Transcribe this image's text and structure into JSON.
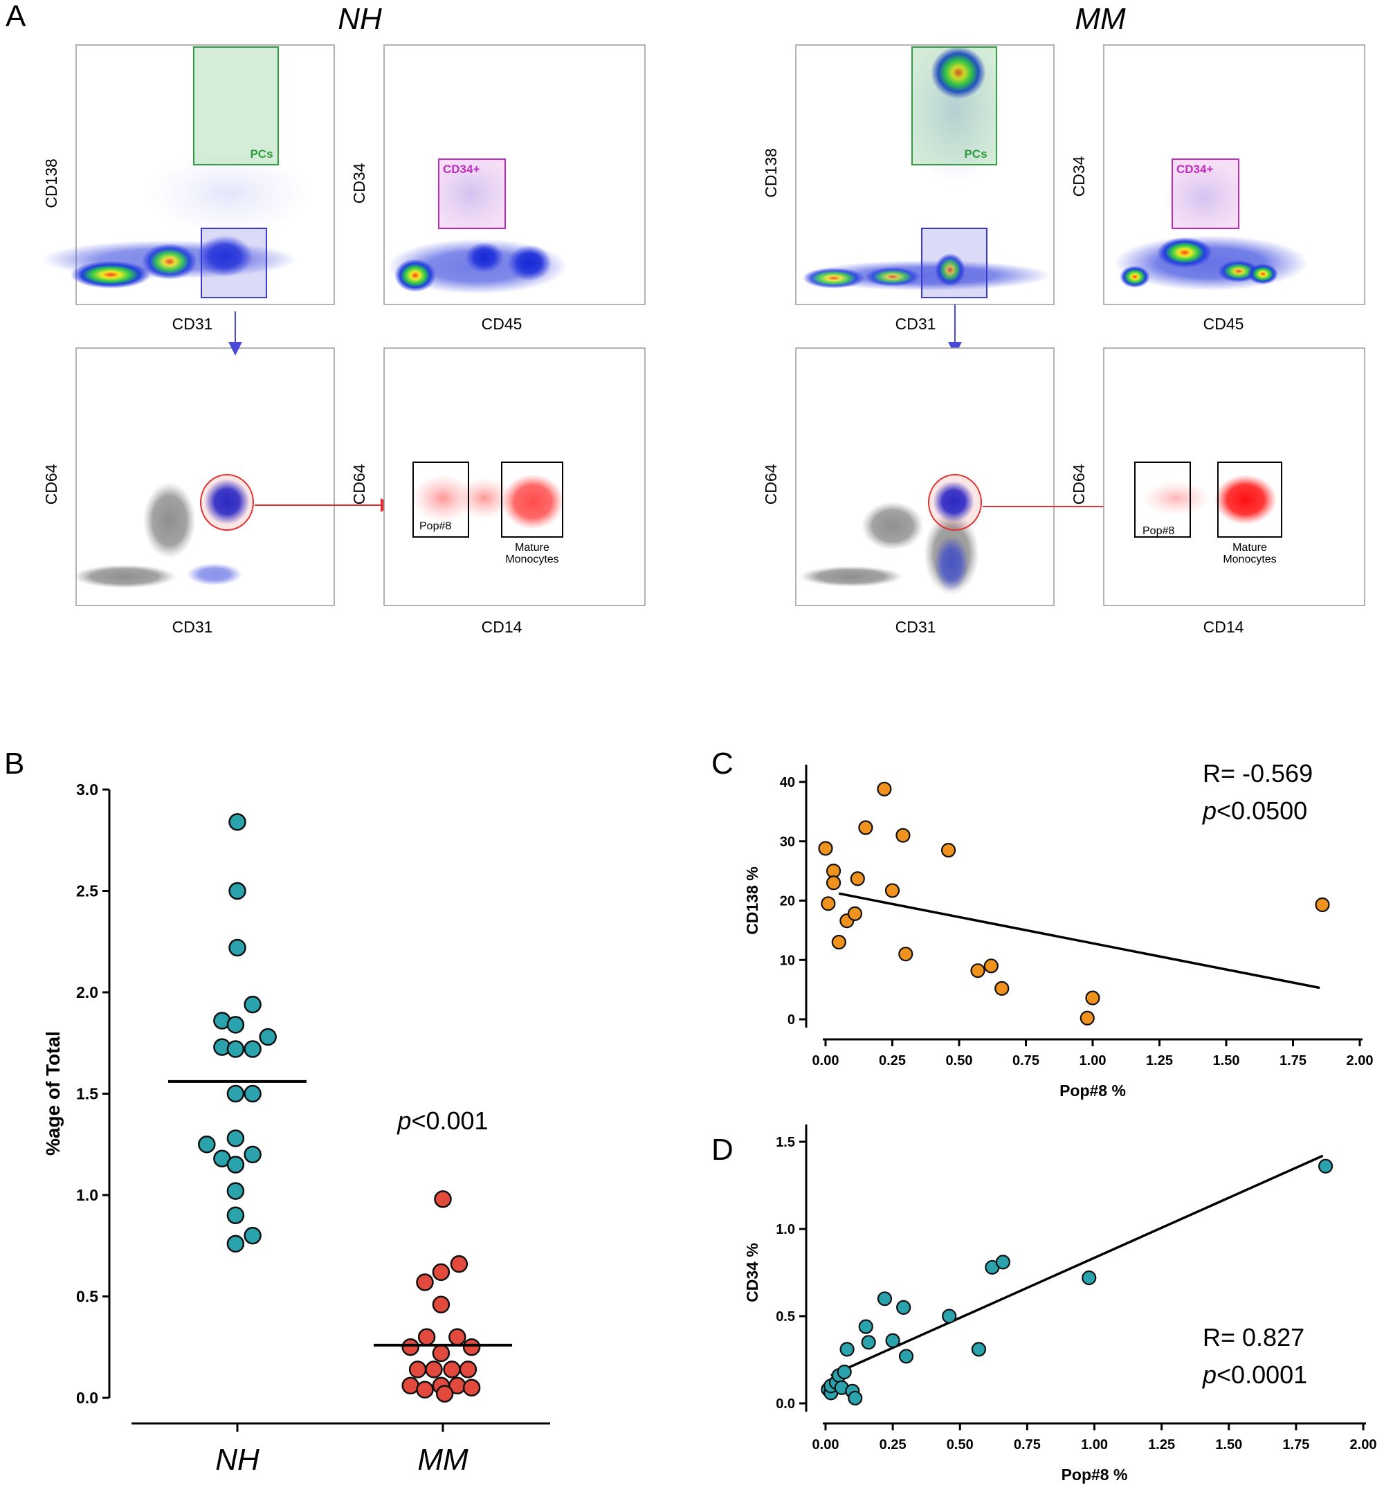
{
  "panel_letters": {
    "A": "A",
    "B": "B",
    "C": "C",
    "D": "D"
  },
  "panelA": {
    "groups": [
      {
        "title": "NH",
        "plots": [
          {
            "id": "nh_tl",
            "xlabel": "CD31",
            "ylabel": "CD138",
            "gates": [
              {
                "label": "PCs",
                "color": "#2e9e3e"
              },
              {
                "label": "",
                "color": "#3a3ad6"
              }
            ]
          },
          {
            "id": "nh_tr",
            "xlabel": "CD45",
            "ylabel": "CD34",
            "gates": [
              {
                "label": "CD34+",
                "color": "#c02cc0"
              }
            ]
          },
          {
            "id": "nh_bl",
            "xlabel": "CD31",
            "ylabel": "CD64",
            "gates": []
          },
          {
            "id": "nh_br",
            "xlabel": "CD14",
            "ylabel": "CD64",
            "gates": [
              {
                "label": "Pop#8",
                "color": "#000000"
              },
              {
                "label": "Mature",
                "label2": "Monocytes",
                "color": "#000000"
              }
            ]
          }
        ]
      },
      {
        "title": "MM",
        "plots": [
          {
            "id": "mm_tl",
            "xlabel": "CD31",
            "ylabel": "CD138",
            "gates": [
              {
                "label": "PCs",
                "color": "#2e9e3e"
              },
              {
                "label": "",
                "color": "#3a3ad6"
              }
            ]
          },
          {
            "id": "mm_tr",
            "xlabel": "CD45",
            "ylabel": "CD34",
            "gates": [
              {
                "label": "CD34+",
                "color": "#c02cc0"
              }
            ]
          },
          {
            "id": "mm_bl",
            "xlabel": "CD31",
            "ylabel": "CD64",
            "gates": []
          },
          {
            "id": "mm_br",
            "xlabel": "CD14",
            "ylabel": "CD64",
            "gates": [
              {
                "label": "Pop#8",
                "color": "#000000"
              },
              {
                "label": "Mature",
                "label2": "Monocytes",
                "color": "#000000"
              }
            ]
          }
        ]
      }
    ]
  },
  "chart_data": [
    {
      "id": "B",
      "type": "scatter",
      "title": "",
      "ylabel": "%age of Total",
      "xlabel": "",
      "categories": [
        "NH",
        "MM"
      ],
      "ylim": [
        0,
        3.0
      ],
      "yticks": [
        "0.0",
        "0.5",
        "1.0",
        "1.5",
        "2.0",
        "2.5",
        "3.0"
      ],
      "annotation": {
        "p": "p",
        "rest": "<0.001"
      },
      "series": [
        {
          "name": "NH",
          "color": "#2ba3ad",
          "median": 1.56,
          "points": [
            [
              0,
              2.84
            ],
            [
              0,
              2.5
            ],
            [
              0,
              2.22
            ],
            [
              -0.17,
              1.86
            ],
            [
              -0.02,
              1.84
            ],
            [
              0.17,
              1.94
            ],
            [
              -0.17,
              1.73
            ],
            [
              -0.02,
              1.72
            ],
            [
              0.17,
              1.72
            ],
            [
              0.34,
              1.78
            ],
            [
              -0.02,
              1.5
            ],
            [
              0.17,
              1.5
            ],
            [
              -0.34,
              1.25
            ],
            [
              -0.17,
              1.18
            ],
            [
              -0.02,
              1.28
            ],
            [
              0.17,
              1.2
            ],
            [
              -0.02,
              1.15
            ],
            [
              -0.02,
              1.02
            ],
            [
              -0.02,
              0.9
            ],
            [
              -0.02,
              0.76
            ],
            [
              0.17,
              0.8
            ]
          ]
        },
        {
          "name": "MM",
          "color": "#e24a3d",
          "median": 0.26,
          "points": [
            [
              0,
              0.98
            ],
            [
              0.18,
              0.66
            ],
            [
              -0.02,
              0.62
            ],
            [
              -0.2,
              0.57
            ],
            [
              -0.02,
              0.46
            ],
            [
              -0.36,
              0.25
            ],
            [
              -0.18,
              0.3
            ],
            [
              0.16,
              0.3
            ],
            [
              0.32,
              0.25
            ],
            [
              -0.02,
              0.22
            ],
            [
              -0.28,
              0.14
            ],
            [
              -0.1,
              0.14
            ],
            [
              0.1,
              0.14
            ],
            [
              0.28,
              0.14
            ],
            [
              -0.36,
              0.06
            ],
            [
              -0.2,
              0.04
            ],
            [
              -0.02,
              0.06
            ],
            [
              0.16,
              0.06
            ],
            [
              0.32,
              0.05
            ],
            [
              0.02,
              0.02
            ]
          ]
        }
      ]
    },
    {
      "id": "C",
      "type": "scatter",
      "title": "",
      "xlabel": "Pop#8 %",
      "ylabel": "CD138 %",
      "xlim": [
        0,
        2.0
      ],
      "ylim": [
        0,
        40
      ],
      "xticks": [
        "0.00",
        "0.25",
        "0.50",
        "0.75",
        "1.00",
        "1.25",
        "1.50",
        "1.75",
        "2.00"
      ],
      "yticks": [
        "0",
        "10",
        "20",
        "30",
        "40"
      ],
      "color": "#f0921e",
      "annotation": {
        "r": "R= -0.569",
        "p": "p",
        "rest": "<0.0500"
      },
      "fit": {
        "x": [
          0.05,
          1.85
        ],
        "y": [
          21.2,
          5.3
        ]
      },
      "points": [
        [
          0.0,
          28.8
        ],
        [
          0.01,
          19.5
        ],
        [
          0.03,
          25.0
        ],
        [
          0.03,
          23.0
        ],
        [
          0.05,
          13.0
        ],
        [
          0.08,
          16.6
        ],
        [
          0.11,
          17.8
        ],
        [
          0.12,
          23.7
        ],
        [
          0.15,
          32.3
        ],
        [
          0.22,
          38.8
        ],
        [
          0.25,
          21.7
        ],
        [
          0.29,
          31.0
        ],
        [
          0.3,
          11.0
        ],
        [
          0.46,
          28.5
        ],
        [
          0.57,
          8.2
        ],
        [
          0.62,
          9.0
        ],
        [
          0.66,
          5.2
        ],
        [
          0.98,
          0.2
        ],
        [
          1.0,
          3.6
        ],
        [
          1.86,
          19.3
        ]
      ]
    },
    {
      "id": "D",
      "type": "scatter",
      "title": "",
      "xlabel": "Pop#8 %",
      "ylabel": "CD34 %",
      "xlim": [
        0,
        2.0
      ],
      "ylim": [
        0,
        1.5
      ],
      "xticks": [
        "0.00",
        "0.25",
        "0.50",
        "0.75",
        "1.00",
        "1.25",
        "1.50",
        "1.75",
        "2.00"
      ],
      "yticks": [
        "0.0",
        "0.5",
        "1.0",
        "1.5"
      ],
      "color": "#2ba3ad",
      "annotation": {
        "r": "R= 0.827",
        "p": "p",
        "rest": "<0.0001"
      },
      "fit": {
        "x": [
          0.02,
          1.85
        ],
        "y": [
          0.16,
          1.42
        ]
      },
      "points": [
        [
          0.01,
          0.08
        ],
        [
          0.02,
          0.06
        ],
        [
          0.02,
          0.1
        ],
        [
          0.04,
          0.12
        ],
        [
          0.05,
          0.16
        ],
        [
          0.06,
          0.09
        ],
        [
          0.07,
          0.18
        ],
        [
          0.08,
          0.31
        ],
        [
          0.1,
          0.07
        ],
        [
          0.11,
          0.03
        ],
        [
          0.15,
          0.44
        ],
        [
          0.16,
          0.35
        ],
        [
          0.22,
          0.6
        ],
        [
          0.25,
          0.36
        ],
        [
          0.29,
          0.55
        ],
        [
          0.3,
          0.27
        ],
        [
          0.46,
          0.5
        ],
        [
          0.57,
          0.31
        ],
        [
          0.62,
          0.78
        ],
        [
          0.66,
          0.81
        ],
        [
          0.98,
          0.72
        ],
        [
          1.86,
          1.36
        ]
      ]
    }
  ]
}
